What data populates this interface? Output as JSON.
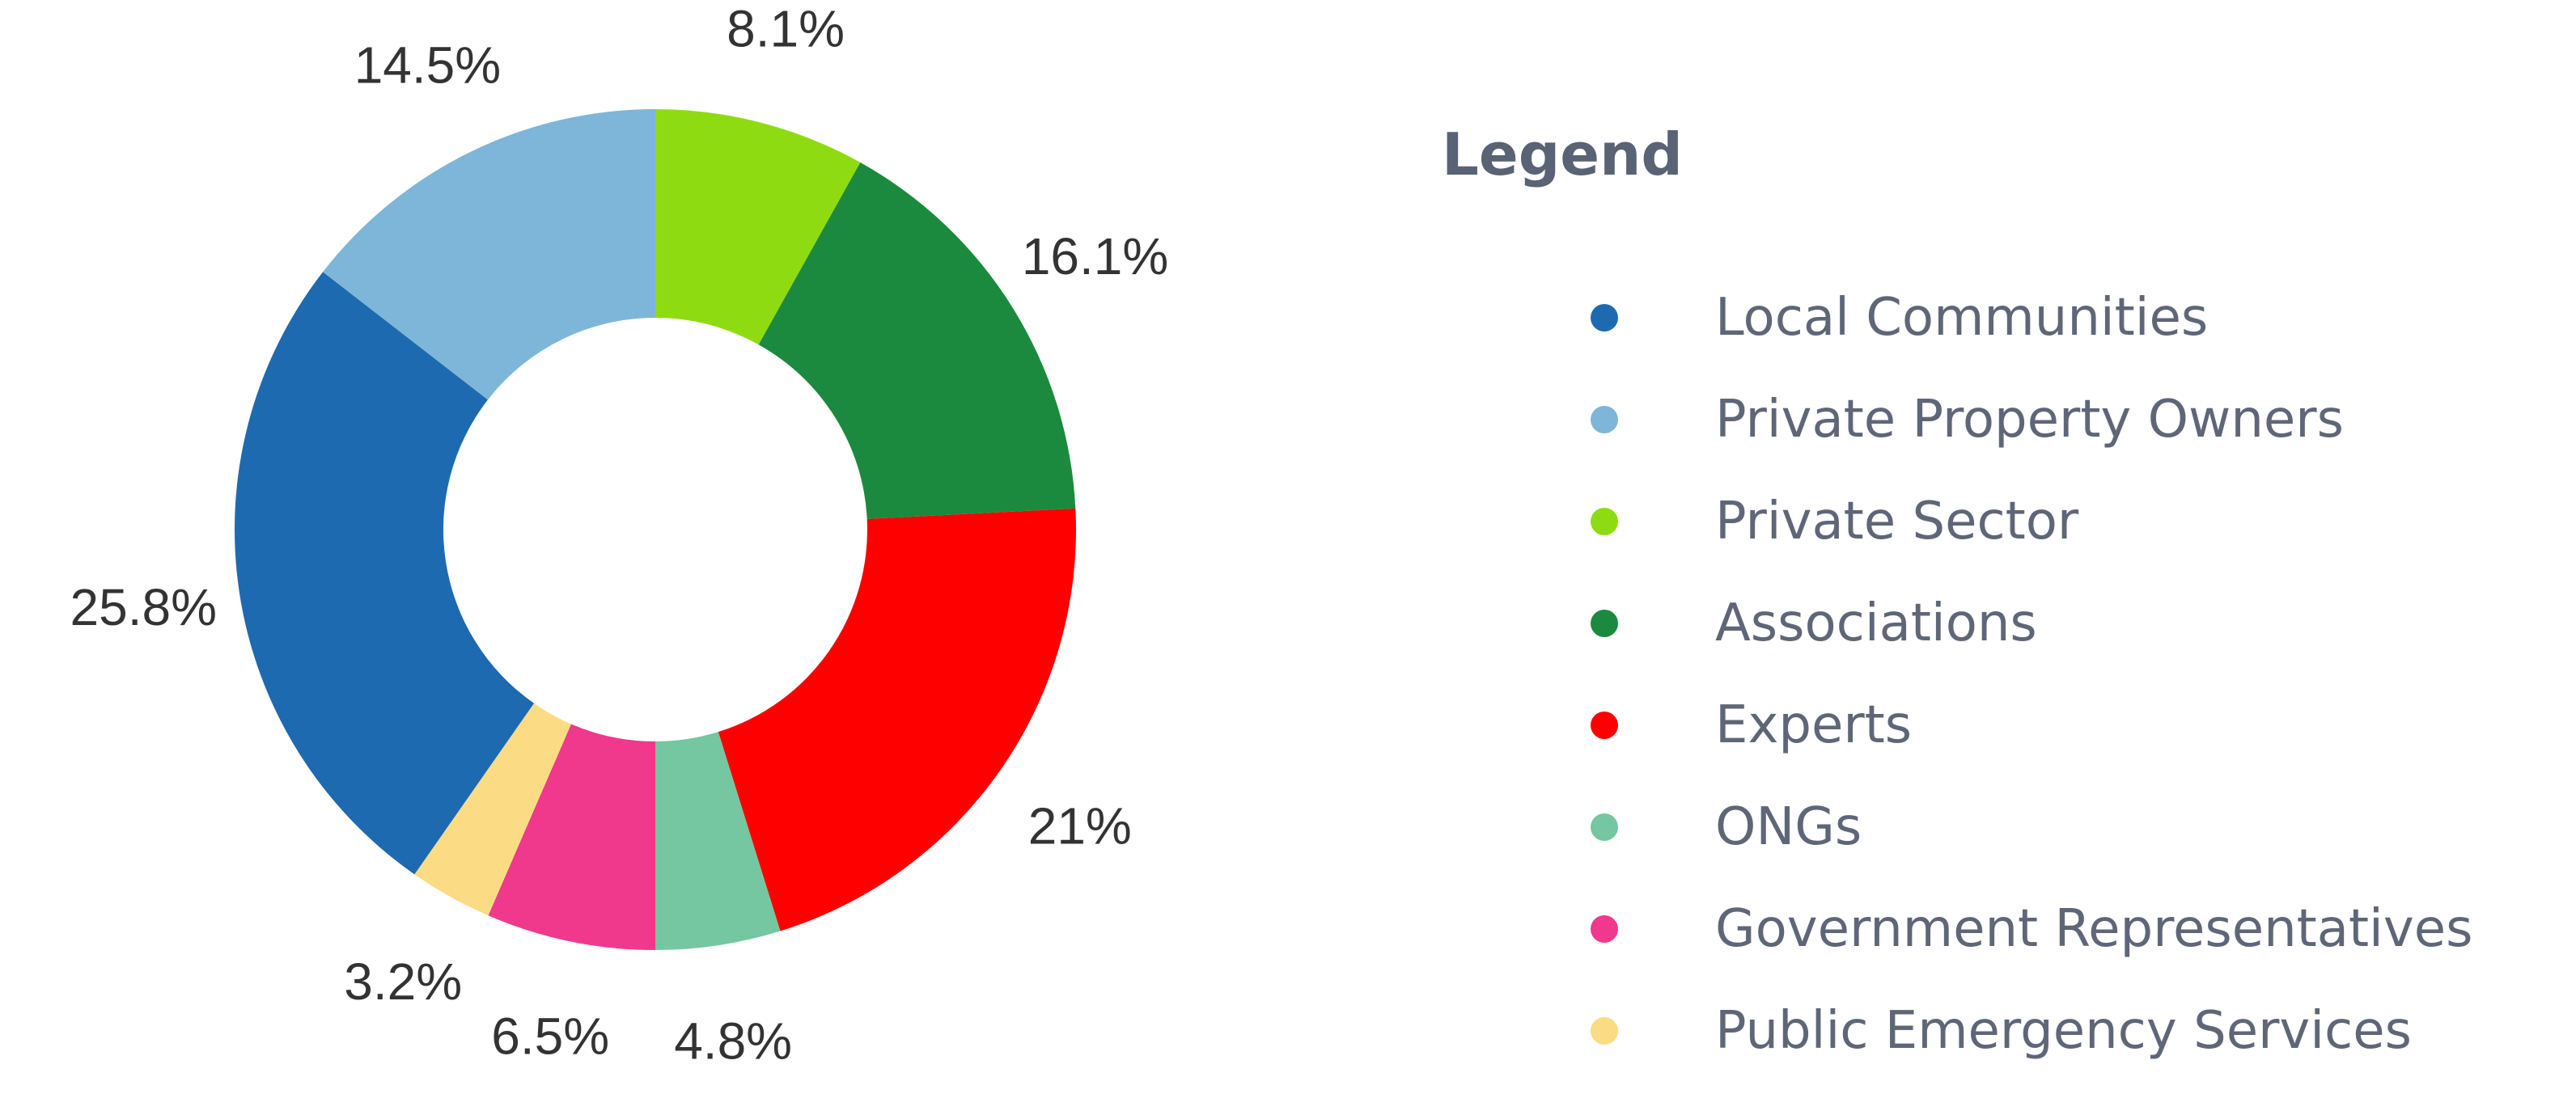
{
  "chart_data": {
    "type": "pie",
    "variant": "donut",
    "legend_title": "Legend",
    "legend_position": "right",
    "categories": [
      "Private Sector",
      "Associations",
      "Experts",
      "ONGs",
      "Government Representatives",
      "Public Emergency Services",
      "Local Communities",
      "Private Property Owners"
    ],
    "values": [
      8.1,
      16.1,
      21,
      4.8,
      6.5,
      3.2,
      25.8,
      14.5
    ],
    "labels": [
      "8.1%",
      "16.1%",
      "21%",
      "4.8%",
      "6.5%",
      "3.2%",
      "25.8%",
      "14.5%"
    ],
    "colors": [
      "#8fdb12",
      "#1b8a3e",
      "#ff0000",
      "#74c7a0",
      "#f0388c",
      "#fbdc84",
      "#1e6ab0",
      "#7db6d8"
    ],
    "legend_order": [
      {
        "label": "Local Communities",
        "color": "#1e6ab0"
      },
      {
        "label": "Private Property Owners",
        "color": "#7db6d8"
      },
      {
        "label": "Private Sector",
        "color": "#8fdb12"
      },
      {
        "label": "Associations",
        "color": "#1b8a3e"
      },
      {
        "label": "Experts",
        "color": "#ff0000"
      },
      {
        "label": "ONGs",
        "color": "#74c7a0"
      },
      {
        "label": "Government Representatives",
        "color": "#f0388c"
      },
      {
        "label": "Public Emergency Services",
        "color": "#fbdc84"
      }
    ]
  }
}
